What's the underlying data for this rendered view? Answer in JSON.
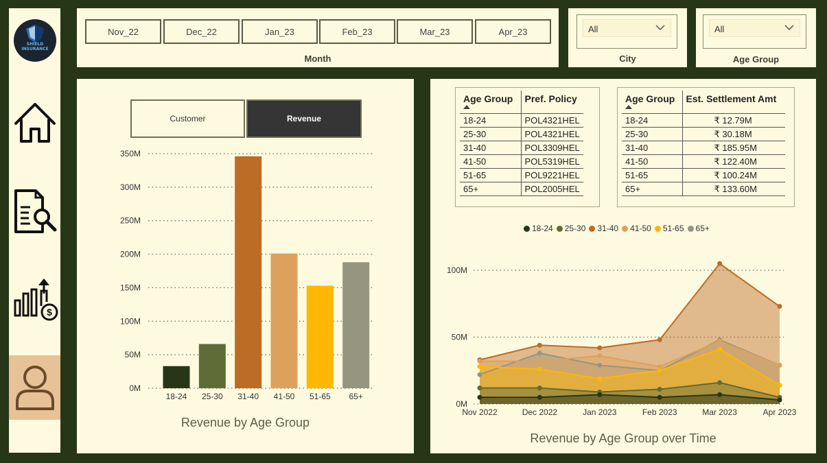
{
  "brand": {
    "logo_line1": "SHIELD",
    "logo_line2": "INSURANCE"
  },
  "nav": {
    "items": [
      {
        "icon": "home-icon"
      },
      {
        "icon": "report-search-icon"
      },
      {
        "icon": "revenue-chart-icon"
      },
      {
        "icon": "user-icon",
        "active": true
      }
    ]
  },
  "month_slicer": {
    "label": "Month",
    "options": [
      "Nov_22",
      "Dec_22",
      "Jan_23",
      "Feb_23",
      "Mar_23",
      "Apr_23"
    ]
  },
  "city_slicer": {
    "label": "City",
    "value": "All"
  },
  "age_slicer": {
    "label": "Age Group",
    "value": "All"
  },
  "toggle": {
    "customer_label": "Customer",
    "revenue_label": "Revenue",
    "selected": "Revenue"
  },
  "policy_table": {
    "headers": [
      "Age Group",
      "Pref. Policy"
    ],
    "rows": [
      [
        "18-24",
        "POL4321HEL"
      ],
      [
        "25-30",
        "POL4321HEL"
      ],
      [
        "31-40",
        "POL3309HEL"
      ],
      [
        "41-50",
        "POL5319HEL"
      ],
      [
        "51-65",
        "POL9221HEL"
      ],
      [
        "65+",
        "POL2005HEL"
      ]
    ]
  },
  "settlement_table": {
    "headers": [
      "Age Group",
      "Est. Settlement Amt"
    ],
    "rows": [
      [
        "18-24",
        "₹ 12.79M"
      ],
      [
        "25-30",
        "₹ 30.18M"
      ],
      [
        "31-40",
        "₹ 185.95M"
      ],
      [
        "41-50",
        "₹ 122.40M"
      ],
      [
        "51-65",
        "₹ 100.24M"
      ],
      [
        "65+",
        "₹ 133.60M"
      ]
    ]
  },
  "colors": {
    "18-24": "#283618",
    "25-30": "#606c38",
    "31-40": "#bc6c25",
    "41-50": "#dda15e",
    "51-65": "#ffb703",
    "65+": "#969680"
  },
  "chart_data": [
    {
      "type": "bar",
      "title": "Revenue by Age Group",
      "categories": [
        "18-24",
        "25-30",
        "31-40",
        "41-50",
        "51-65",
        "65+"
      ],
      "values": [
        33,
        66,
        346,
        201,
        153,
        188
      ],
      "unit": "M",
      "ylim": [
        0,
        350
      ],
      "yticks": [
        "0M",
        "50M",
        "100M",
        "150M",
        "200M",
        "250M",
        "300M",
        "350M"
      ],
      "grid": true
    },
    {
      "type": "area",
      "title": "Revenue by Age Group over Time",
      "x": [
        "Nov 2022",
        "Dec 2022",
        "Jan 2023",
        "Feb 2023",
        "Mar 2023",
        "Apr 2023"
      ],
      "ylim": [
        0,
        100
      ],
      "yticks": [
        "0M",
        "50M",
        "100M"
      ],
      "legend": "top",
      "series": [
        {
          "name": "18-24",
          "values": [
            5,
            5,
            7,
            5,
            7,
            3
          ]
        },
        {
          "name": "25-30",
          "values": [
            12,
            12,
            9,
            11,
            16,
            5
          ]
        },
        {
          "name": "31-40",
          "values": [
            33,
            44,
            42,
            48,
            105,
            73
          ]
        },
        {
          "name": "41-50",
          "values": [
            32,
            32,
            36,
            28,
            47,
            29
          ]
        },
        {
          "name": "51-65",
          "values": [
            28,
            26,
            19,
            25,
            41,
            14
          ]
        },
        {
          "name": "65+",
          "values": [
            22,
            38,
            29,
            25,
            48,
            29
          ]
        }
      ]
    }
  ]
}
